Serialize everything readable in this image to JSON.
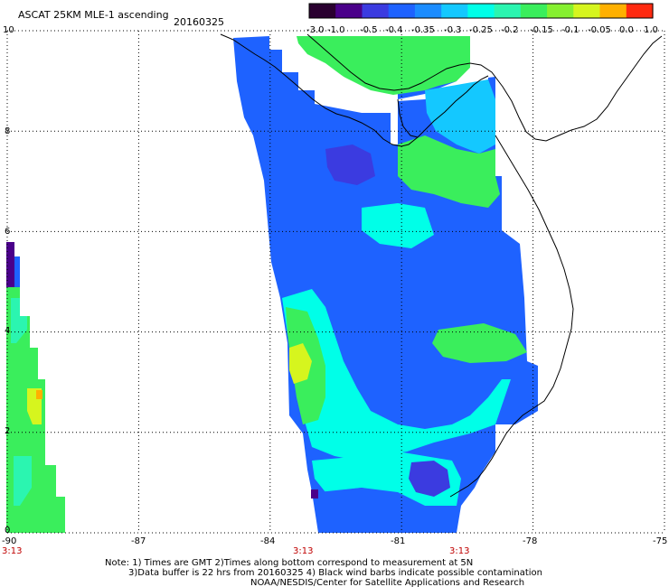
{
  "header": {
    "title": "ASCAT 25KM MLE-1 ascending",
    "date": "20160325"
  },
  "colorbar": {
    "labels": [
      "-3.0",
      "-1.0",
      "-0.5",
      "-0.4",
      "-0.35",
      "-0.3",
      "-0.25",
      "-0.2",
      "-0.15",
      "-0.1",
      "-0.05",
      "0.0",
      "1.0"
    ],
    "colors": [
      "#2a0030",
      "#4a008a",
      "#3b3be0",
      "#1e62ff",
      "#1b8cff",
      "#14c8ff",
      "#00ffe8",
      "#2bf5b0",
      "#3aee5c",
      "#86f030",
      "#d6f51e",
      "#ffb000",
      "#ff2a10"
    ]
  },
  "axes": {
    "x_ticks": [
      "-90",
      "-87",
      "-84",
      "-81",
      "-78",
      "-75"
    ],
    "y_ticks": [
      "0",
      "2",
      "4",
      "6",
      "8",
      "10"
    ],
    "x_range": [
      -90,
      -75
    ],
    "y_range": [
      0,
      10
    ]
  },
  "pass_times": [
    "3:13",
    "3:13",
    "3:13"
  ],
  "notes": {
    "line1": "Note: 1) Times are GMT 2)Times along bottom correspond to measurement at 5N",
    "line2": "3)Data buffer is 22 hrs from 20160325 4) Black wind barbs indicate possible contamination",
    "line3": "NOAA/NESDIS/Center for Satellite Applications and Research"
  }
}
